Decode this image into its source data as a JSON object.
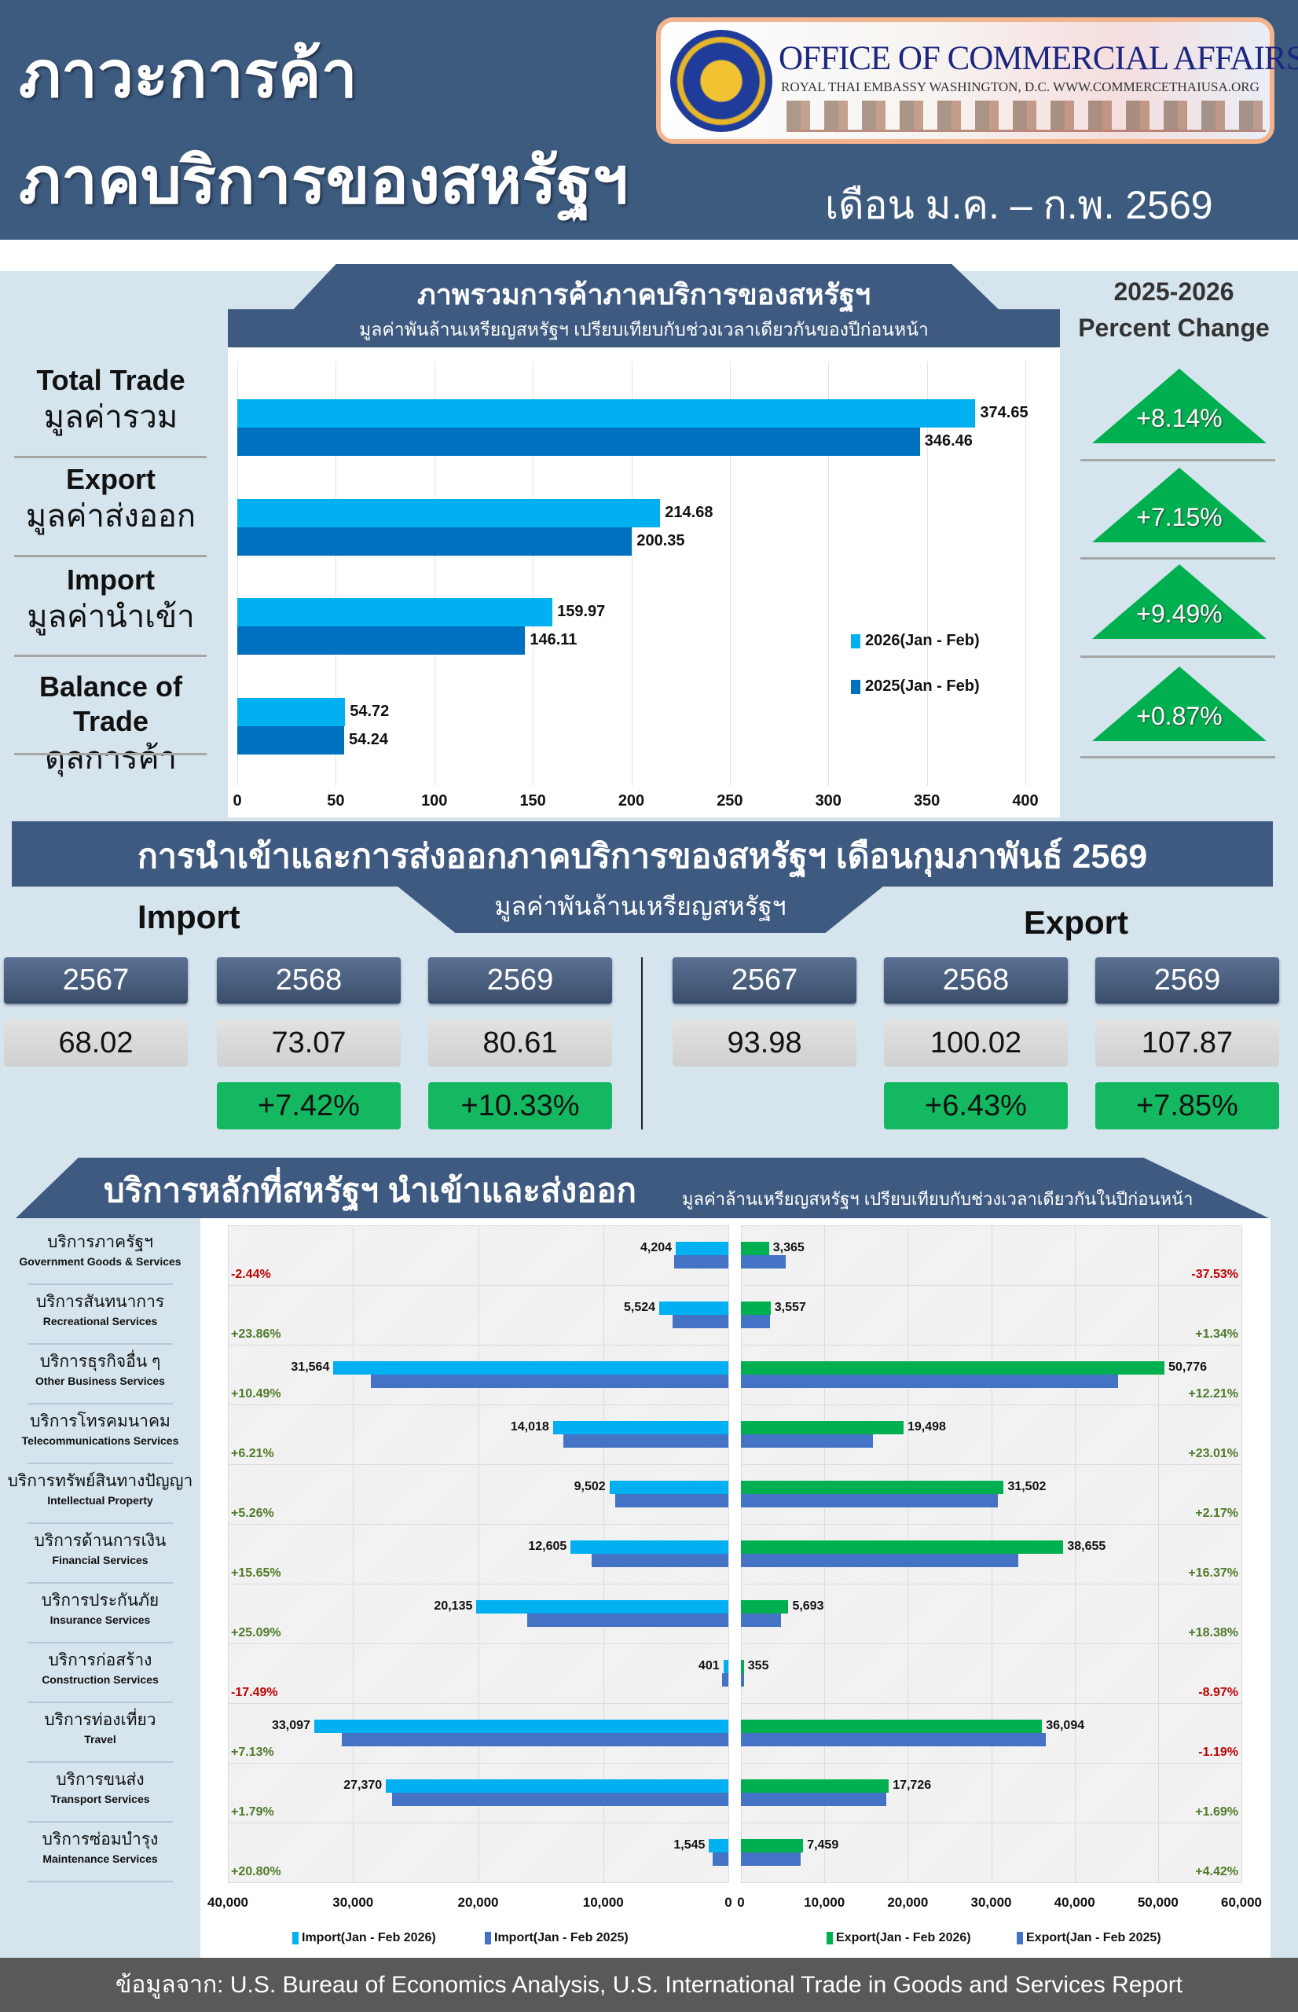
{
  "header": {
    "title_line1": "ภาวะการค้า",
    "title_line2": "ภาคบริการของสหรัฐฯ",
    "period": "เดือน ม.ค. – ก.พ. 2569",
    "logo": {
      "title": "OFFICE OF COMMERCIAL AFFAIRS",
      "subtitle": "ROYAL THAI EMBASSY WASHINGTON, D.C.    WWW.COMMERCETHAIUSA.ORG"
    }
  },
  "overview": {
    "title": "ภาพรวมการค้าภาคบริการของสหรัฐฯ",
    "subtitle": "มูลค่าพันล้านเหรียญสหรัฐฯ เปรียบเทียบกับช่วงเวลาเดียวกันของปีก่อนหน้า",
    "percent_header": [
      "2025-2026",
      "Percent Change"
    ],
    "rows": [
      {
        "en": "Total Trade",
        "th": "มูลค่ารวม",
        "pct": "+8.14%"
      },
      {
        "en": "Export",
        "th": "มูลค่าส่งออก",
        "pct": "+7.15%"
      },
      {
        "en": "Import",
        "th": "มูลค่านำเข้า",
        "pct": "+9.49%"
      },
      {
        "en": "Balance of Trade",
        "th": "ดุลการค้า",
        "pct": "+0.87%"
      }
    ],
    "colors": {
      "up": "#00b050"
    }
  },
  "monthly": {
    "title": "การนำเข้าและการส่งออกภาคบริการของสหรัฐฯ เดือนกุมภาพันธ์ 2569",
    "subtitle": "มูลค่าพันล้านเหรียญสหรัฐฯ",
    "import_label": "Import",
    "export_label": "Export",
    "import": [
      {
        "year": "2567",
        "value": "68.02",
        "pct": ""
      },
      {
        "year": "2568",
        "value": "73.07",
        "pct": "+7.42%"
      },
      {
        "year": "2569",
        "value": "80.61",
        "pct": "+10.33%"
      }
    ],
    "export": [
      {
        "year": "2567",
        "value": "93.98",
        "pct": ""
      },
      {
        "year": "2568",
        "value": "100.02",
        "pct": "+6.43%"
      },
      {
        "year": "2569",
        "value": "107.87",
        "pct": "+7.85%"
      }
    ]
  },
  "services": {
    "title": "บริการหลักที่สหรัฐฯ นำเข้าและส่งออก",
    "subtitle": "มูลค่าล้านเหรียญสหรัฐฯ เปรียบเทียบกับช่วงเวลาเดียวกันในปีก่อนหน้า"
  },
  "chart_data": [
    {
      "type": "bar",
      "orientation": "horizontal",
      "categories": [
        "Total Trade",
        "Export",
        "Import",
        "Balance of Trade"
      ],
      "series": [
        {
          "name": "2026(Jan - Feb)",
          "values": [
            374.65,
            214.68,
            159.97,
            54.72
          ],
          "labels": [
            "374.65",
            "214.68",
            "159.97",
            "54.72"
          ],
          "color": "#00b0f0"
        },
        {
          "name": "2025(Jan - Feb)",
          "values": [
            346.46,
            200.35,
            146.11,
            54.24
          ],
          "labels": [
            "346.46",
            "200.35",
            "146.11",
            "54.24"
          ],
          "color": "#0070c0"
        }
      ],
      "xlim": [
        0,
        400
      ],
      "xticks": [
        "0",
        "50",
        "100",
        "150",
        "200",
        "250",
        "300",
        "350",
        "400"
      ],
      "legend": "right",
      "grid": true
    },
    {
      "type": "bar",
      "orientation": "horizontal-butterfly",
      "categories": [
        {
          "th": "บริการภาครัฐฯ",
          "en": "Government Goods & Services"
        },
        {
          "th": "บริการสันทนาการ",
          "en": "Recreational Services"
        },
        {
          "th": "บริการธุรกิจอื่น ๆ",
          "en": "Other Business Services"
        },
        {
          "th": "บริการโทรคมนาคม",
          "en": "Telecommunications Services"
        },
        {
          "th": "บริการทรัพย์สินทางปัญญา",
          "en": "Intellectual Property"
        },
        {
          "th": "บริการด้านการเงิน",
          "en": "Financial Services"
        },
        {
          "th": "บริการประกันภัย",
          "en": "Insurance Services"
        },
        {
          "th": "บริการก่อสร้าง",
          "en": "Construction Services"
        },
        {
          "th": "บริการท่องเที่ยว",
          "en": "Travel"
        },
        {
          "th": "บริการขนส่ง",
          "en": "Transport Services"
        },
        {
          "th": "บริการซ่อมบำรุง",
          "en": "Maintenance Services"
        }
      ],
      "import": {
        "series": [
          {
            "name": "Import(Jan - Feb 2026)",
            "color": "#00b0f0",
            "values": [
              4204,
              5524,
              31564,
              14018,
              9502,
              12605,
              20135,
              401,
              33097,
              27370,
              1545
            ],
            "labels": [
              "4,204",
              "5,524",
              "31,564",
              "14,018",
              "9,502",
              "12,605",
              "20,135",
              "401",
              "33,097",
              "27,370",
              "1,545"
            ]
          },
          {
            "name": "Import(Jan - Feb 2025)",
            "color": "#4472c4",
            "values": [
              4309,
              4460,
              28567,
              13198,
              9027,
              10899,
              16097,
              486,
              30894,
              26889,
              1279
            ]
          }
        ],
        "pct_change": [
          "-2.44%",
          "+23.86%",
          "+10.49%",
          "+6.21%",
          "+5.26%",
          "+15.65%",
          "+25.09%",
          "-17.49%",
          "+7.13%",
          "+1.79%",
          "+20.80%"
        ],
        "xlim": [
          40000,
          0
        ],
        "xticks": [
          "40,000",
          "30,000",
          "20,000",
          "10,000",
          "0"
        ]
      },
      "export": {
        "series": [
          {
            "name": "Export(Jan - Feb 2026)",
            "color": "#00b050",
            "values": [
              3365,
              3557,
              50776,
              19498,
              31502,
              38655,
              5693,
              355,
              36094,
              17726,
              7459
            ],
            "labels": [
              "3,365",
              "3,557",
              "50,776",
              "19,498",
              "31,502",
              "38,655",
              "5,693",
              "355",
              "36,094",
              "17,726",
              "7,459"
            ]
          },
          {
            "name": "Export(Jan - Feb 2025)",
            "color": "#4472c4",
            "values": [
              5387,
              3510,
              45251,
              15851,
              30833,
              33217,
              4809,
              390,
              36529,
              17431,
              7143
            ]
          }
        ],
        "pct_change": [
          "-37.53%",
          "+1.34%",
          "+12.21%",
          "+23.01%",
          "+2.17%",
          "+16.37%",
          "+18.38%",
          "-8.97%",
          "-1.19%",
          "+1.69%",
          "+4.42%"
        ],
        "xlim": [
          0,
          60000
        ],
        "xticks": [
          "0",
          "10,000",
          "20,000",
          "30,000",
          "40,000",
          "50,000",
          "60,000"
        ]
      },
      "pct_colors": {
        "positive": "#4f7a28",
        "negative": "#c00000"
      },
      "legend": "bottom",
      "grid": true
    }
  ],
  "footer": {
    "source": "ข้อมูลจาก: U.S. Bureau of Economics Analysis, U.S. International Trade in Goods and Services Report"
  }
}
